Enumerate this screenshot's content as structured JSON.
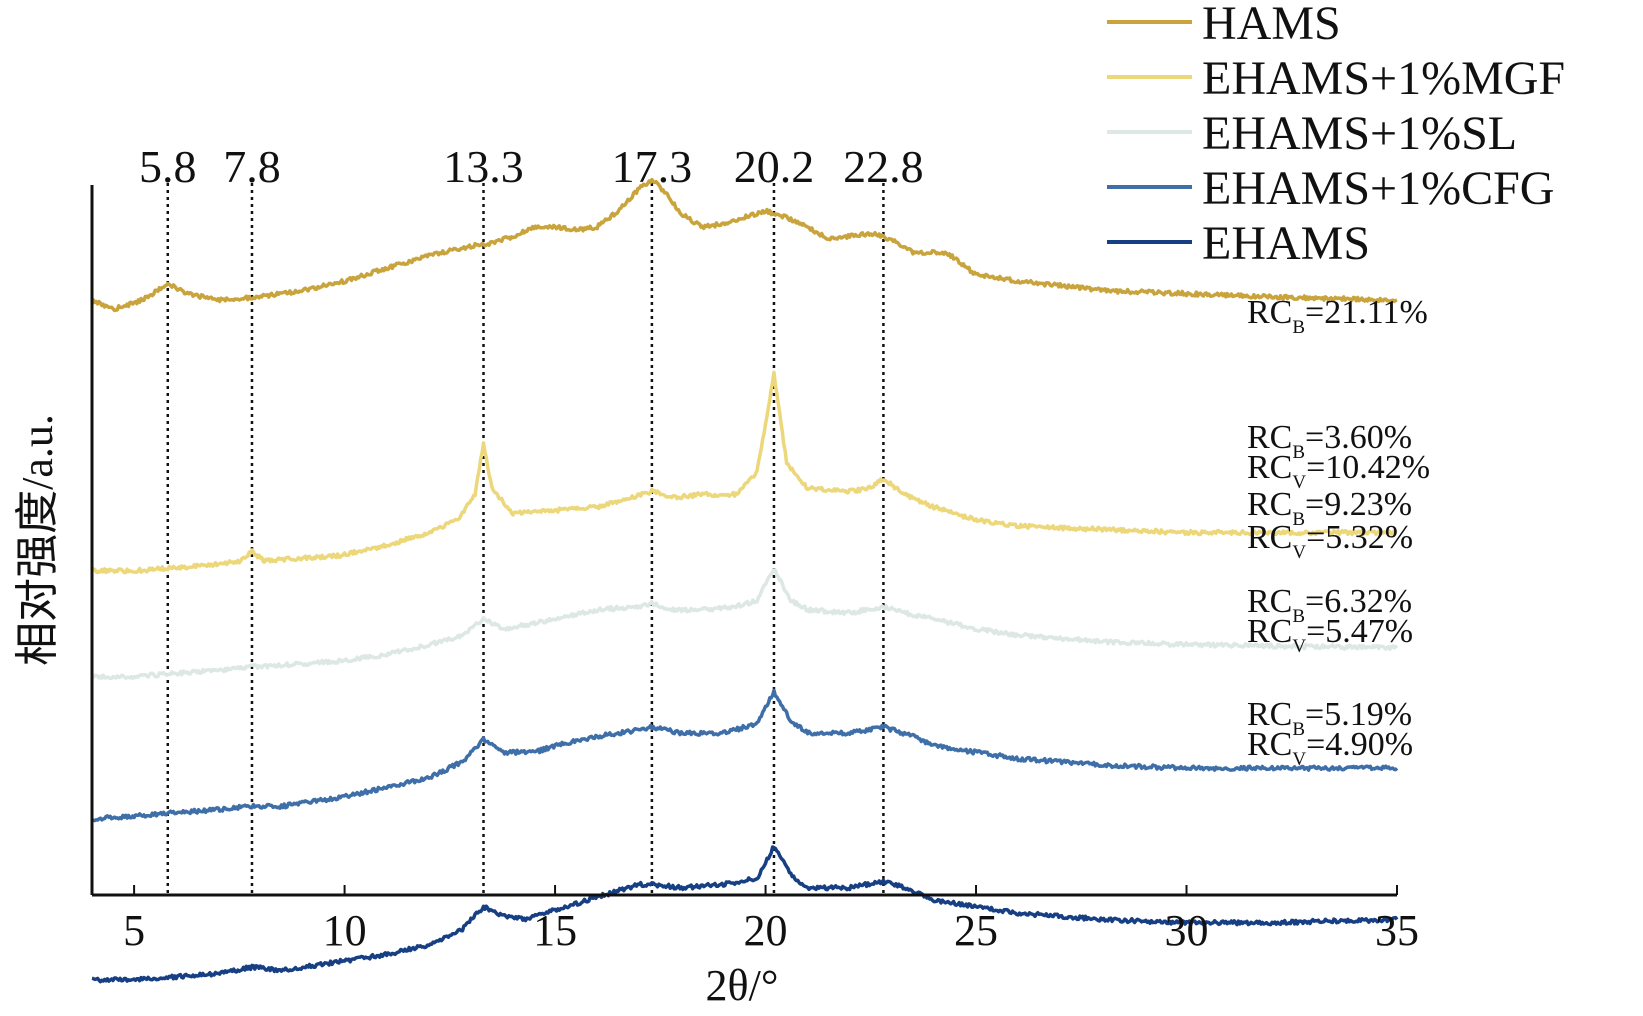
{
  "chart_data": {
    "type": "line",
    "xlabel": "2θ/°",
    "ylabel": "相对强度/a.u.",
    "xlim": [
      4,
      35
    ],
    "x_ticks": [
      5,
      10,
      15,
      20,
      25,
      30,
      35
    ],
    "legend_position": "top-right",
    "reference_peaks": [
      {
        "x": 5.8,
        "label": "5.8"
      },
      {
        "x": 7.8,
        "label": "7.8"
      },
      {
        "x": 13.3,
        "label": "13.3"
      },
      {
        "x": 17.3,
        "label": "17.3"
      },
      {
        "x": 20.2,
        "label": "20.2"
      },
      {
        "x": 22.8,
        "label": "22.8"
      }
    ],
    "series": [
      {
        "name": "HAMS",
        "color": "#c9a43c",
        "points": [
          [
            4,
            0.22
          ],
          [
            4.5,
            0.19
          ],
          [
            5.2,
            0.22
          ],
          [
            5.8,
            0.27
          ],
          [
            6.3,
            0.24
          ],
          [
            7,
            0.22
          ],
          [
            8,
            0.23
          ],
          [
            9,
            0.25
          ],
          [
            10,
            0.28
          ],
          [
            11,
            0.32
          ],
          [
            12,
            0.36
          ],
          [
            13,
            0.39
          ],
          [
            13.5,
            0.4
          ],
          [
            14,
            0.42
          ],
          [
            14.5,
            0.45
          ],
          [
            15,
            0.45
          ],
          [
            15.5,
            0.44
          ],
          [
            16,
            0.45
          ],
          [
            16.5,
            0.5
          ],
          [
            17,
            0.57
          ],
          [
            17.3,
            0.6
          ],
          [
            17.6,
            0.56
          ],
          [
            18,
            0.49
          ],
          [
            18.5,
            0.45
          ],
          [
            19,
            0.46
          ],
          [
            19.5,
            0.48
          ],
          [
            20,
            0.5
          ],
          [
            20.5,
            0.48
          ],
          [
            21,
            0.45
          ],
          [
            21.5,
            0.41
          ],
          [
            22,
            0.42
          ],
          [
            22.5,
            0.43
          ],
          [
            23,
            0.41
          ],
          [
            23.5,
            0.37
          ],
          [
            24,
            0.37
          ],
          [
            24.3,
            0.37
          ],
          [
            25,
            0.3
          ],
          [
            26,
            0.28
          ],
          [
            28,
            0.25
          ],
          [
            30,
            0.24
          ],
          [
            32,
            0.23
          ],
          [
            35,
            0.22
          ]
        ]
      },
      {
        "name": "EHAMS+1%MGF",
        "color": "#ecd77a",
        "points": [
          [
            4,
            -0.04
          ],
          [
            5,
            -0.04
          ],
          [
            6,
            -0.03
          ],
          [
            7,
            -0.02
          ],
          [
            7.5,
            -0.01
          ],
          [
            7.8,
            0.02
          ],
          [
            8.1,
            -0.01
          ],
          [
            9,
            0.0
          ],
          [
            10,
            0.01
          ],
          [
            11,
            0.04
          ],
          [
            12,
            0.08
          ],
          [
            12.7,
            0.12
          ],
          [
            13.1,
            0.2
          ],
          [
            13.3,
            0.36
          ],
          [
            13.5,
            0.22
          ],
          [
            14,
            0.14
          ],
          [
            15,
            0.15
          ],
          [
            16,
            0.16
          ],
          [
            16.8,
            0.19
          ],
          [
            17.3,
            0.21
          ],
          [
            17.8,
            0.19
          ],
          [
            18.5,
            0.2
          ],
          [
            19.3,
            0.2
          ],
          [
            19.8,
            0.27
          ],
          [
            20.2,
            0.58
          ],
          [
            20.5,
            0.3
          ],
          [
            21,
            0.22
          ],
          [
            22,
            0.21
          ],
          [
            22.5,
            0.22
          ],
          [
            22.8,
            0.25
          ],
          [
            23.3,
            0.2
          ],
          [
            24,
            0.16
          ],
          [
            25,
            0.12
          ],
          [
            26,
            0.1
          ],
          [
            28,
            0.09
          ],
          [
            30,
            0.08
          ],
          [
            33,
            0.08
          ],
          [
            35,
            0.08
          ]
        ]
      },
      {
        "name": "EHAMS+1%SL",
        "color": "#dde8e4",
        "points": [
          [
            4,
            -0.14
          ],
          [
            5,
            -0.14
          ],
          [
            6,
            -0.13
          ],
          [
            7,
            -0.12
          ],
          [
            7.8,
            -0.11
          ],
          [
            9,
            -0.1
          ],
          [
            10,
            -0.09
          ],
          [
            11,
            -0.07
          ],
          [
            12,
            -0.04
          ],
          [
            12.8,
            -0.01
          ],
          [
            13.3,
            0.04
          ],
          [
            13.8,
            0.01
          ],
          [
            15,
            0.04
          ],
          [
            16,
            0.07
          ],
          [
            17,
            0.08
          ],
          [
            17.3,
            0.09
          ],
          [
            17.8,
            0.07
          ],
          [
            18.5,
            0.07
          ],
          [
            19.3,
            0.08
          ],
          [
            19.8,
            0.1
          ],
          [
            20.2,
            0.2
          ],
          [
            20.6,
            0.1
          ],
          [
            21,
            0.07
          ],
          [
            22,
            0.06
          ],
          [
            22.8,
            0.08
          ],
          [
            23.3,
            0.06
          ],
          [
            24,
            0.04
          ],
          [
            25,
            0.01
          ],
          [
            26,
            -0.01
          ],
          [
            28,
            -0.03
          ],
          [
            30,
            -0.04
          ],
          [
            35,
            -0.05
          ]
        ]
      },
      {
        "name": "EHAMS+1%CFG",
        "color": "#3f6fa8",
        "points": [
          [
            4,
            -0.28
          ],
          [
            5,
            -0.27
          ],
          [
            6,
            -0.26
          ],
          [
            7,
            -0.25
          ],
          [
            7.8,
            -0.24
          ],
          [
            8.5,
            -0.24
          ],
          [
            9,
            -0.23
          ],
          [
            10,
            -0.21
          ],
          [
            11,
            -0.18
          ],
          [
            12,
            -0.15
          ],
          [
            12.8,
            -0.1
          ],
          [
            13.3,
            -0.03
          ],
          [
            13.8,
            -0.07
          ],
          [
            14.5,
            -0.07
          ],
          [
            15,
            -0.05
          ],
          [
            16,
            -0.02
          ],
          [
            17,
            0.0
          ],
          [
            17.3,
            0.01
          ],
          [
            18,
            -0.01
          ],
          [
            19,
            -0.01
          ],
          [
            19.8,
            0.02
          ],
          [
            20.2,
            0.12
          ],
          [
            20.6,
            0.03
          ],
          [
            21,
            -0.01
          ],
          [
            22,
            -0.01
          ],
          [
            22.8,
            0.01
          ],
          [
            23.5,
            -0.02
          ],
          [
            24,
            -0.05
          ],
          [
            25,
            -0.07
          ],
          [
            26,
            -0.09
          ],
          [
            28,
            -0.11
          ],
          [
            30,
            -0.12
          ],
          [
            32,
            -0.12
          ],
          [
            35,
            -0.12
          ]
        ]
      },
      {
        "name": "EHAMS",
        "color": "#173f84",
        "points": [
          [
            4,
            -0.44
          ],
          [
            4.5,
            -0.44
          ],
          [
            5,
            -0.44
          ],
          [
            6,
            -0.43
          ],
          [
            7,
            -0.42
          ],
          [
            7.8,
            -0.4
          ],
          [
            8.5,
            -0.41
          ],
          [
            9,
            -0.4
          ],
          [
            10,
            -0.38
          ],
          [
            11,
            -0.36
          ],
          [
            12,
            -0.33
          ],
          [
            12.8,
            -0.28
          ],
          [
            13.3,
            -0.21
          ],
          [
            13.8,
            -0.24
          ],
          [
            14.3,
            -0.25
          ],
          [
            15,
            -0.22
          ],
          [
            16,
            -0.18
          ],
          [
            17,
            -0.14
          ],
          [
            17.3,
            -0.14
          ],
          [
            18,
            -0.15
          ],
          [
            19,
            -0.14
          ],
          [
            19.8,
            -0.12
          ],
          [
            20.2,
            -0.02
          ],
          [
            20.6,
            -0.11
          ],
          [
            21,
            -0.15
          ],
          [
            22,
            -0.15
          ],
          [
            22.8,
            -0.13
          ],
          [
            23.3,
            -0.15
          ],
          [
            24,
            -0.19
          ],
          [
            25,
            -0.21
          ],
          [
            26,
            -0.23
          ],
          [
            28,
            -0.25
          ],
          [
            30,
            -0.26
          ],
          [
            32,
            -0.26
          ],
          [
            35,
            -0.25
          ]
        ]
      }
    ],
    "annotations": [
      {
        "series": "HAMS",
        "lines": [
          {
            "base": "RC",
            "sub": "B",
            "value": "=21.11%"
          }
        ]
      },
      {
        "series": "EHAMS+1%MGF",
        "lines": [
          {
            "base": "RC",
            "sub": "B",
            "value": "=3.60%"
          },
          {
            "base": "RC",
            "sub": "V",
            "value": "=10.42%"
          }
        ]
      },
      {
        "series": "EHAMS+1%SL",
        "lines": [
          {
            "base": "RC",
            "sub": "B",
            "value": "=9.23%"
          },
          {
            "base": "RC",
            "sub": "V",
            "value": "=5.32%"
          }
        ]
      },
      {
        "series": "EHAMS+1%CFG",
        "lines": [
          {
            "base": "RC",
            "sub": "B",
            "value": "=6.32%"
          },
          {
            "base": "RC",
            "sub": "V",
            "value": "=5.47%"
          }
        ]
      },
      {
        "series": "EHAMS",
        "lines": [
          {
            "base": "RC",
            "sub": "B",
            "value": "=5.19%"
          },
          {
            "base": "RC",
            "sub": "V",
            "value": "=4.90%"
          }
        ]
      }
    ]
  }
}
